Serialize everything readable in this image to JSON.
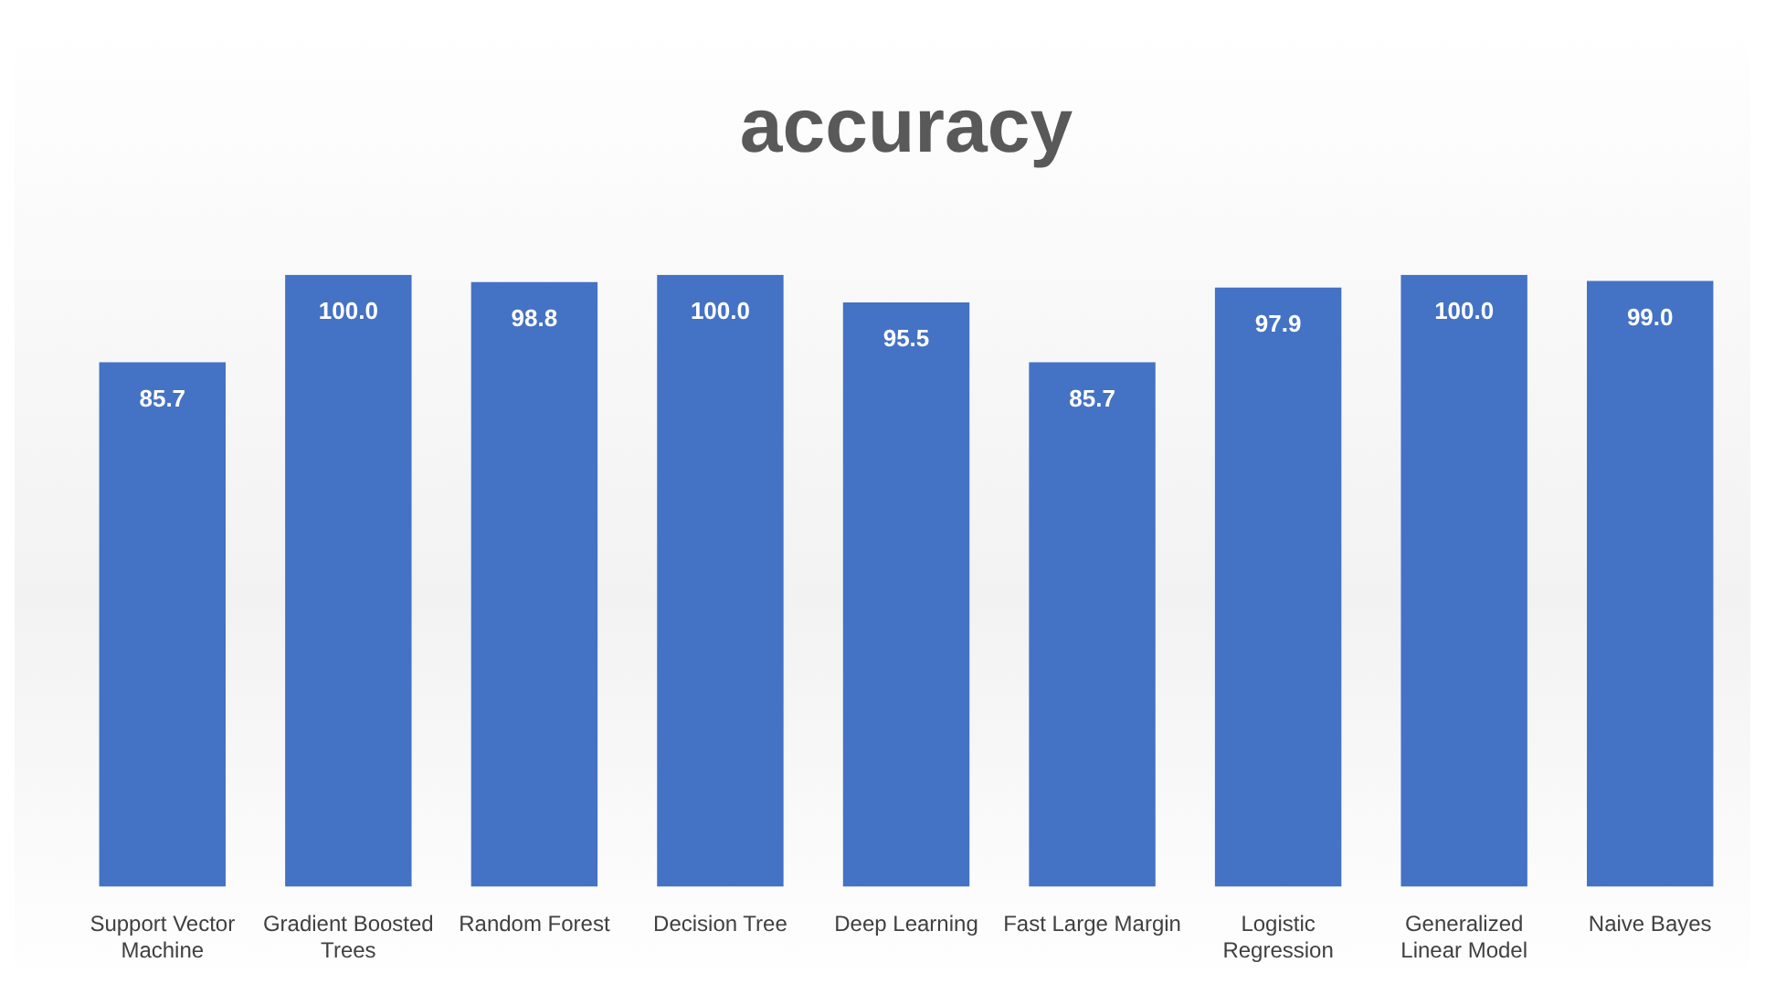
{
  "chart_data": {
    "type": "bar",
    "title": "accuracy",
    "categories": [
      "Support Vector Machine",
      "Gradient Boosted Trees",
      "Random Forest",
      "Decision Tree",
      "Deep Learning",
      "Fast Large Margin",
      "Logistic Regression",
      "Generalized Linear Model",
      "Naive Bayes"
    ],
    "values": [
      85.7,
      100.0,
      98.8,
      100.0,
      95.5,
      85.7,
      97.9,
      100.0,
      99.0
    ],
    "value_labels": [
      "85.7",
      "100.0",
      "98.8",
      "100.0",
      "95.5",
      "85.7",
      "97.9",
      "100.0",
      "99.0"
    ],
    "color": "#4472c4",
    "tick_labels": "x",
    "grid": false,
    "legend": false
  }
}
